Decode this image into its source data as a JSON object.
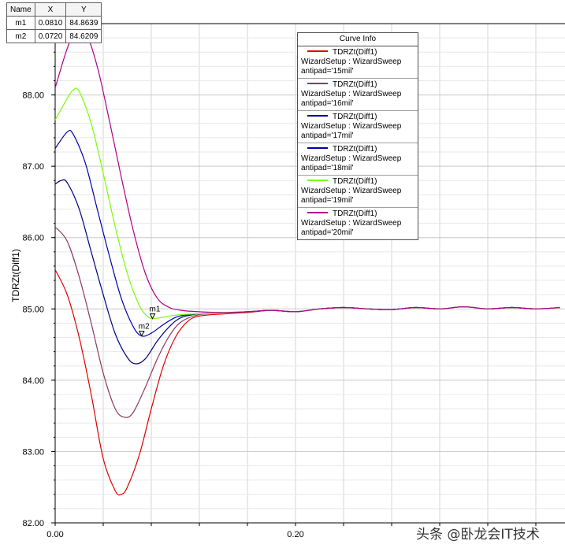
{
  "marker_table": {
    "headers": [
      "Name",
      "X",
      "Y"
    ],
    "rows": [
      [
        "m1",
        "0.0810",
        "84.8639"
      ],
      [
        "m2",
        "0.0720",
        "84.6209"
      ]
    ]
  },
  "legend": {
    "title": "Curve Info",
    "entries": [
      {
        "line1": "TDRZt(Diff1)",
        "line2": "WizardSetup : WizardSweep",
        "line3": "antipad='15mil'",
        "color": "#e00000"
      },
      {
        "line1": "TDRZt(Diff1)",
        "line2": "WizardSetup : WizardSweep",
        "line3": "antipad='16mil'",
        "color": "#8b3a62"
      },
      {
        "line1": "TDRZt(Diff1)",
        "line2": "WizardSetup : WizardSweep",
        "line3": "antipad='17mil'",
        "color": "#000080"
      },
      {
        "line1": "TDRZt(Diff1)",
        "line2": "WizardSetup : WizardSweep",
        "line3": "antipad='18mil'",
        "color": "#0000b0"
      },
      {
        "line1": "TDRZt(Diff1)",
        "line2": "WizardSetup : WizardSweep",
        "line3": "antipad='19mil'",
        "color": "#7cfc00"
      },
      {
        "line1": "TDRZt(Diff1)",
        "line2": "WizardSetup : WizardSweep",
        "line3": "antipad='20mil'",
        "color": "#b0008b"
      }
    ]
  },
  "watermark": "头条 @卧龙会IT技术",
  "chart_data": {
    "type": "line",
    "title": "",
    "xlabel": "",
    "ylabel": "TDRZt(Diff1)",
    "xlim": [
      0,
      0.42
    ],
    "ylim": [
      82,
      89
    ],
    "x_ticks": [
      "0.00",
      "0.20"
    ],
    "y_ticks": [
      "82.00",
      "83.00",
      "84.00",
      "85.00",
      "86.00",
      "87.00",
      "88.00"
    ],
    "grid": true,
    "legend_position": "top-right",
    "markers": [
      {
        "name": "m1",
        "x": 0.081,
        "y": 84.8639
      },
      {
        "name": "m2",
        "x": 0.072,
        "y": 84.6209
      }
    ],
    "series": [
      {
        "name": "antipad='15mil'",
        "color": "#e00000",
        "points": [
          [
            0,
            85.55
          ],
          [
            0.01,
            85.2
          ],
          [
            0.02,
            84.6
          ],
          [
            0.03,
            83.8
          ],
          [
            0.04,
            82.9
          ],
          [
            0.05,
            82.45
          ],
          [
            0.055,
            82.4
          ],
          [
            0.06,
            82.5
          ],
          [
            0.07,
            82.95
          ],
          [
            0.08,
            83.6
          ],
          [
            0.09,
            84.2
          ],
          [
            0.1,
            84.6
          ],
          [
            0.11,
            84.82
          ],
          [
            0.12,
            84.9
          ],
          [
            0.14,
            84.93
          ],
          [
            0.16,
            84.95
          ],
          [
            0.18,
            84.98
          ],
          [
            0.2,
            84.96
          ],
          [
            0.22,
            85.0
          ],
          [
            0.24,
            85.02
          ],
          [
            0.26,
            85.0
          ],
          [
            0.28,
            84.99
          ],
          [
            0.3,
            85.02
          ],
          [
            0.32,
            85.0
          ],
          [
            0.34,
            85.03
          ],
          [
            0.36,
            85.0
          ],
          [
            0.38,
            85.02
          ],
          [
            0.4,
            85.0
          ],
          [
            0.42,
            85.02
          ]
        ]
      },
      {
        "name": "antipad='16mil'",
        "color": "#8b3a62",
        "points": [
          [
            0,
            86.15
          ],
          [
            0.01,
            85.95
          ],
          [
            0.02,
            85.45
          ],
          [
            0.03,
            84.8
          ],
          [
            0.04,
            84.1
          ],
          [
            0.05,
            83.6
          ],
          [
            0.058,
            83.48
          ],
          [
            0.065,
            83.55
          ],
          [
            0.075,
            83.9
          ],
          [
            0.085,
            84.3
          ],
          [
            0.095,
            84.62
          ],
          [
            0.105,
            84.82
          ],
          [
            0.12,
            84.92
          ],
          [
            0.14,
            84.94
          ],
          [
            0.16,
            84.96
          ],
          [
            0.18,
            84.98
          ],
          [
            0.2,
            84.96
          ],
          [
            0.22,
            85.0
          ],
          [
            0.24,
            85.02
          ],
          [
            0.26,
            85.0
          ],
          [
            0.28,
            84.99
          ],
          [
            0.3,
            85.02
          ],
          [
            0.32,
            85.0
          ],
          [
            0.34,
            85.03
          ],
          [
            0.36,
            85.0
          ],
          [
            0.38,
            85.02
          ],
          [
            0.4,
            85.0
          ],
          [
            0.42,
            85.02
          ]
        ]
      },
      {
        "name": "antipad='17mil'",
        "color": "#000080",
        "points": [
          [
            0,
            86.75
          ],
          [
            0.005,
            86.8
          ],
          [
            0.01,
            86.77
          ],
          [
            0.02,
            86.4
          ],
          [
            0.03,
            85.8
          ],
          [
            0.04,
            85.2
          ],
          [
            0.05,
            84.65
          ],
          [
            0.06,
            84.32
          ],
          [
            0.067,
            84.23
          ],
          [
            0.075,
            84.3
          ],
          [
            0.085,
            84.55
          ],
          [
            0.095,
            84.75
          ],
          [
            0.105,
            84.88
          ],
          [
            0.12,
            84.93
          ],
          [
            0.14,
            84.94
          ],
          [
            0.16,
            84.96
          ],
          [
            0.18,
            84.98
          ],
          [
            0.2,
            84.96
          ],
          [
            0.22,
            85.0
          ],
          [
            0.24,
            85.02
          ],
          [
            0.26,
            85.0
          ],
          [
            0.28,
            84.99
          ],
          [
            0.3,
            85.02
          ],
          [
            0.32,
            85.0
          ],
          [
            0.34,
            85.03
          ],
          [
            0.36,
            85.0
          ],
          [
            0.38,
            85.02
          ],
          [
            0.4,
            85.0
          ],
          [
            0.42,
            85.02
          ]
        ]
      },
      {
        "name": "antipad='18mil'",
        "color": "#0000b0",
        "points": [
          [
            0,
            87.25
          ],
          [
            0.01,
            87.48
          ],
          [
            0.015,
            87.45
          ],
          [
            0.025,
            87.05
          ],
          [
            0.035,
            86.4
          ],
          [
            0.045,
            85.75
          ],
          [
            0.055,
            85.15
          ],
          [
            0.065,
            84.75
          ],
          [
            0.072,
            84.62
          ],
          [
            0.08,
            84.66
          ],
          [
            0.09,
            84.78
          ],
          [
            0.1,
            84.88
          ],
          [
            0.11,
            84.92
          ],
          [
            0.12,
            84.93
          ],
          [
            0.14,
            84.94
          ],
          [
            0.16,
            84.96
          ],
          [
            0.18,
            84.98
          ],
          [
            0.2,
            84.96
          ],
          [
            0.22,
            85.0
          ],
          [
            0.24,
            85.02
          ],
          [
            0.26,
            85.0
          ],
          [
            0.28,
            84.99
          ],
          [
            0.3,
            85.02
          ],
          [
            0.32,
            85.0
          ],
          [
            0.34,
            85.03
          ],
          [
            0.36,
            85.0
          ],
          [
            0.38,
            85.02
          ],
          [
            0.4,
            85.0
          ],
          [
            0.42,
            85.02
          ]
        ]
      },
      {
        "name": "antipad='19mil'",
        "color": "#7cfc00",
        "points": [
          [
            0,
            87.65
          ],
          [
            0.01,
            87.95
          ],
          [
            0.015,
            88.07
          ],
          [
            0.02,
            88.05
          ],
          [
            0.03,
            87.6
          ],
          [
            0.04,
            86.9
          ],
          [
            0.05,
            86.15
          ],
          [
            0.06,
            85.5
          ],
          [
            0.07,
            85.05
          ],
          [
            0.078,
            84.88
          ],
          [
            0.085,
            84.87
          ],
          [
            0.095,
            84.9
          ],
          [
            0.105,
            84.92
          ],
          [
            0.12,
            84.93
          ],
          [
            0.14,
            84.94
          ],
          [
            0.16,
            84.96
          ],
          [
            0.18,
            84.98
          ],
          [
            0.2,
            84.96
          ],
          [
            0.22,
            85.0
          ],
          [
            0.24,
            85.02
          ],
          [
            0.26,
            85.0
          ],
          [
            0.28,
            84.99
          ],
          [
            0.3,
            85.02
          ],
          [
            0.32,
            85.0
          ],
          [
            0.34,
            85.03
          ],
          [
            0.36,
            85.0
          ],
          [
            0.38,
            85.02
          ],
          [
            0.4,
            85.0
          ],
          [
            0.42,
            85.02
          ]
        ]
      },
      {
        "name": "antipad='20mil'",
        "color": "#b0008b",
        "points": [
          [
            0,
            88.1
          ],
          [
            0.01,
            88.65
          ],
          [
            0.018,
            88.95
          ],
          [
            0.025,
            88.9
          ],
          [
            0.035,
            88.4
          ],
          [
            0.045,
            87.65
          ],
          [
            0.055,
            86.85
          ],
          [
            0.065,
            86.1
          ],
          [
            0.075,
            85.5
          ],
          [
            0.085,
            85.15
          ],
          [
            0.095,
            85.02
          ],
          [
            0.105,
            84.98
          ],
          [
            0.12,
            84.96
          ],
          [
            0.14,
            84.95
          ],
          [
            0.16,
            84.96
          ],
          [
            0.18,
            84.98
          ],
          [
            0.2,
            84.96
          ],
          [
            0.22,
            85.0
          ],
          [
            0.24,
            85.02
          ],
          [
            0.26,
            85.0
          ],
          [
            0.28,
            84.99
          ],
          [
            0.3,
            85.02
          ],
          [
            0.32,
            85.0
          ],
          [
            0.34,
            85.03
          ],
          [
            0.36,
            85.0
          ],
          [
            0.38,
            85.02
          ],
          [
            0.4,
            85.0
          ],
          [
            0.42,
            85.02
          ]
        ]
      }
    ]
  }
}
